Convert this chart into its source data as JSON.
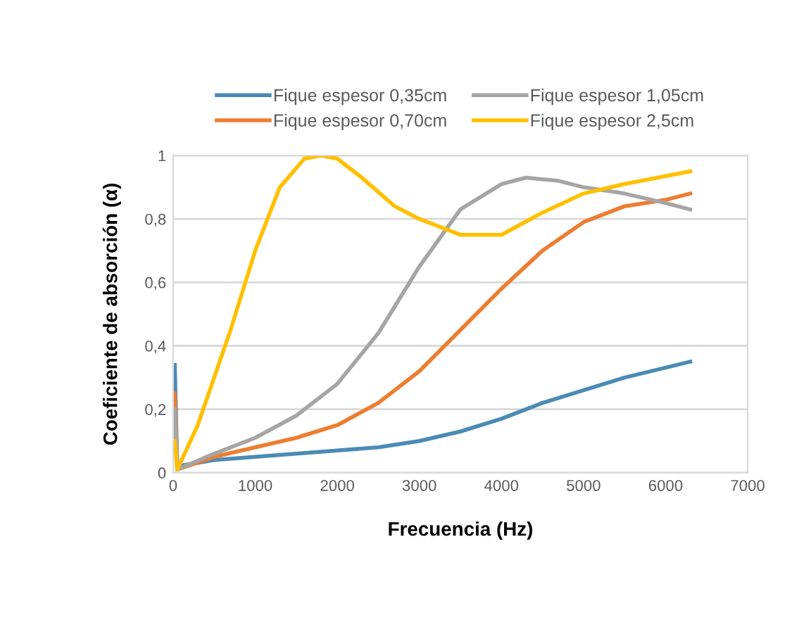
{
  "chart_data": {
    "type": "line",
    "xlabel": "Frecuencia (Hz)",
    "ylabel": "Coeficiente de absorción (α)",
    "xlim": [
      0,
      7000
    ],
    "xticks": [
      0,
      1000,
      2000,
      3000,
      4000,
      5000,
      6000,
      7000
    ],
    "ylim": [
      0,
      1
    ],
    "yticks": [
      0,
      {
        "value": 0.2,
        "label": "0,2"
      },
      {
        "value": 0.4,
        "label": "0,4"
      },
      {
        "value": 0.6,
        "label": "0,6"
      },
      {
        "value": 0.8,
        "label": "0,8"
      },
      1
    ],
    "grid": "y",
    "legend": "top",
    "marker": "none",
    "line_style": "solid",
    "series": [
      {
        "name": "Fique espesor 0,35cm",
        "color": "#4a8bb5",
        "x": [
          20,
          50,
          500,
          1000,
          1500,
          2000,
          2500,
          3000,
          3500,
          4000,
          4500,
          5000,
          5500,
          6300
        ],
        "values": [
          0.34,
          0.02,
          0.04,
          0.05,
          0.06,
          0.07,
          0.08,
          0.1,
          0.13,
          0.17,
          0.22,
          0.26,
          0.3,
          0.35
        ]
      },
      {
        "name": "Fique espesor 0,70cm",
        "color": "#ed7d31",
        "x": [
          20,
          50,
          500,
          1000,
          1500,
          2000,
          2500,
          3000,
          3500,
          4000,
          4500,
          5000,
          5500,
          6000,
          6300
        ],
        "values": [
          0.25,
          0.01,
          0.05,
          0.08,
          0.11,
          0.15,
          0.22,
          0.32,
          0.45,
          0.58,
          0.7,
          0.79,
          0.84,
          0.86,
          0.88
        ]
      },
      {
        "name": "Fique espesor 1,05cm",
        "color": "#a5a5a5",
        "x": [
          20,
          50,
          500,
          1000,
          1500,
          2000,
          2500,
          3000,
          3500,
          4000,
          4300,
          4700,
          5000,
          5500,
          6000,
          6300
        ],
        "values": [
          0.2,
          0.01,
          0.06,
          0.11,
          0.18,
          0.28,
          0.44,
          0.65,
          0.83,
          0.91,
          0.93,
          0.92,
          0.9,
          0.88,
          0.85,
          0.83
        ]
      },
      {
        "name": "Fique espesor 2,5cm",
        "color": "#ffc000",
        "x": [
          20,
          50,
          300,
          700,
          1000,
          1300,
          1600,
          1800,
          2000,
          2300,
          2700,
          3000,
          3500,
          4000,
          4500,
          5000,
          5500,
          6300
        ],
        "values": [
          0.1,
          0.01,
          0.15,
          0.45,
          0.7,
          0.9,
          0.99,
          1.0,
          0.99,
          0.93,
          0.84,
          0.8,
          0.75,
          0.75,
          0.82,
          0.88,
          0.91,
          0.95
        ]
      }
    ]
  }
}
